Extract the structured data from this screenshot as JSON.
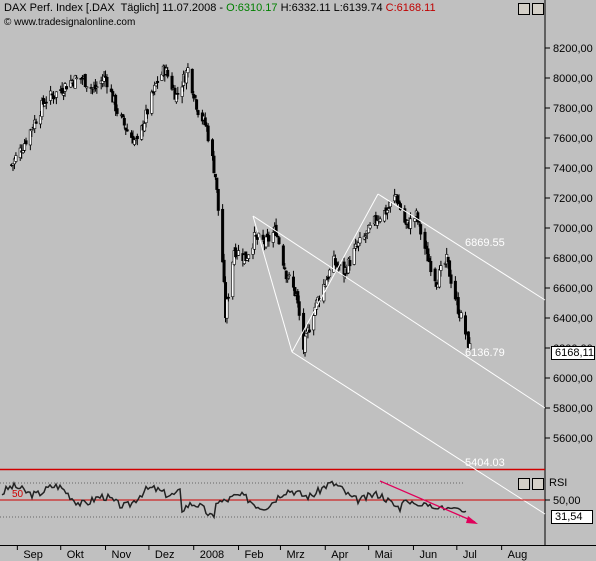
{
  "header": {
    "name": "DAX Perf. Index [.DAX  Täglich] 11.07.2008 -",
    "open": "O:6310.17",
    "high": "H:6332.11",
    "low": "L:6139.74",
    "close": "C:6168.11",
    "copyright": "© www.tradesignalonline.com"
  },
  "colors": {
    "bg": "#c0c0c0",
    "open": "#008000",
    "close": "#c00000",
    "rsi_level": "#d00000",
    "channel": "#ffffff"
  },
  "price_axis": {
    "ticks": [
      "8200,00",
      "8000,00",
      "7800,00",
      "7600,00",
      "7400,00",
      "7200,00",
      "7000,00",
      "6800,00",
      "6600,00",
      "6400,00",
      "6200,00",
      "6000,00",
      "5800,00",
      "5600,00"
    ],
    "current": "6168,11"
  },
  "channel_labels": {
    "upper": "6869.55",
    "middle": "6136.79",
    "lower": "5404.03"
  },
  "rsi": {
    "label": "RSI",
    "level_label": "50",
    "axis_tick": "50,00",
    "current": "31,54"
  },
  "time_axis": [
    "Sep",
    "Okt",
    "Nov",
    "Dez",
    "2008",
    "Feb",
    "Mrz",
    "Apr",
    "Mai",
    "Jun",
    "Jul",
    "Aug"
  ],
  "chart_data": {
    "type": "candlestick",
    "title": "DAX Perf. Index [.DAX Täglich]",
    "ylim": [
      5500,
      8350
    ],
    "close_path": [
      [
        "2007-08-28",
        7420
      ],
      [
        "2007-09-05",
        7550
      ],
      [
        "2007-09-12",
        7690
      ],
      [
        "2007-09-20",
        7850
      ],
      [
        "2007-09-28",
        7900
      ],
      [
        "2007-10-08",
        7980
      ],
      [
        "2007-10-16",
        8000
      ],
      [
        "2007-10-24",
        7920
      ],
      [
        "2007-11-01",
        8010
      ],
      [
        "2007-11-09",
        7780
      ],
      [
        "2007-11-16",
        7650
      ],
      [
        "2007-11-23",
        7560
      ],
      [
        "2007-11-30",
        7780
      ],
      [
        "2007-12-07",
        7980
      ],
      [
        "2007-12-12",
        8060
      ],
      [
        "2007-12-20",
        7880
      ],
      [
        "2007-12-28",
        8060
      ],
      [
        "2008-01-04",
        7790
      ],
      [
        "2008-01-10",
        7670
      ],
      [
        "2008-01-16",
        7350
      ],
      [
        "2008-01-21",
        6780
      ],
      [
        "2008-01-23",
        6420
      ],
      [
        "2008-01-29",
        6860
      ],
      [
        "2008-02-06",
        6800
      ],
      [
        "2008-02-12",
        6930
      ],
      [
        "2008-02-20",
        6900
      ],
      [
        "2008-02-27",
        6990
      ],
      [
        "2008-03-05",
        6700
      ],
      [
        "2008-03-12",
        6550
      ],
      [
        "2008-03-17",
        6200
      ],
      [
        "2008-03-24",
        6450
      ],
      [
        "2008-03-31",
        6620
      ],
      [
        "2008-04-07",
        6770
      ],
      [
        "2008-04-14",
        6700
      ],
      [
        "2008-04-22",
        6860
      ],
      [
        "2008-04-30",
        6960
      ],
      [
        "2008-05-07",
        7070
      ],
      [
        "2008-05-14",
        7120
      ],
      [
        "2008-05-20",
        7220
      ],
      [
        "2008-05-27",
        7010
      ],
      [
        "2008-06-03",
        7080
      ],
      [
        "2008-06-10",
        6830
      ],
      [
        "2008-06-17",
        6650
      ],
      [
        "2008-06-24",
        6780
      ],
      [
        "2008-07-01",
        6500
      ],
      [
        "2008-07-07",
        6300
      ],
      [
        "2008-07-11",
        6168
      ]
    ],
    "channel": {
      "upper_end": 6869.55,
      "middle_end": 6136.79,
      "lower_end": 5404.03
    },
    "rsi": {
      "level": 50,
      "last": 31.54
    }
  }
}
